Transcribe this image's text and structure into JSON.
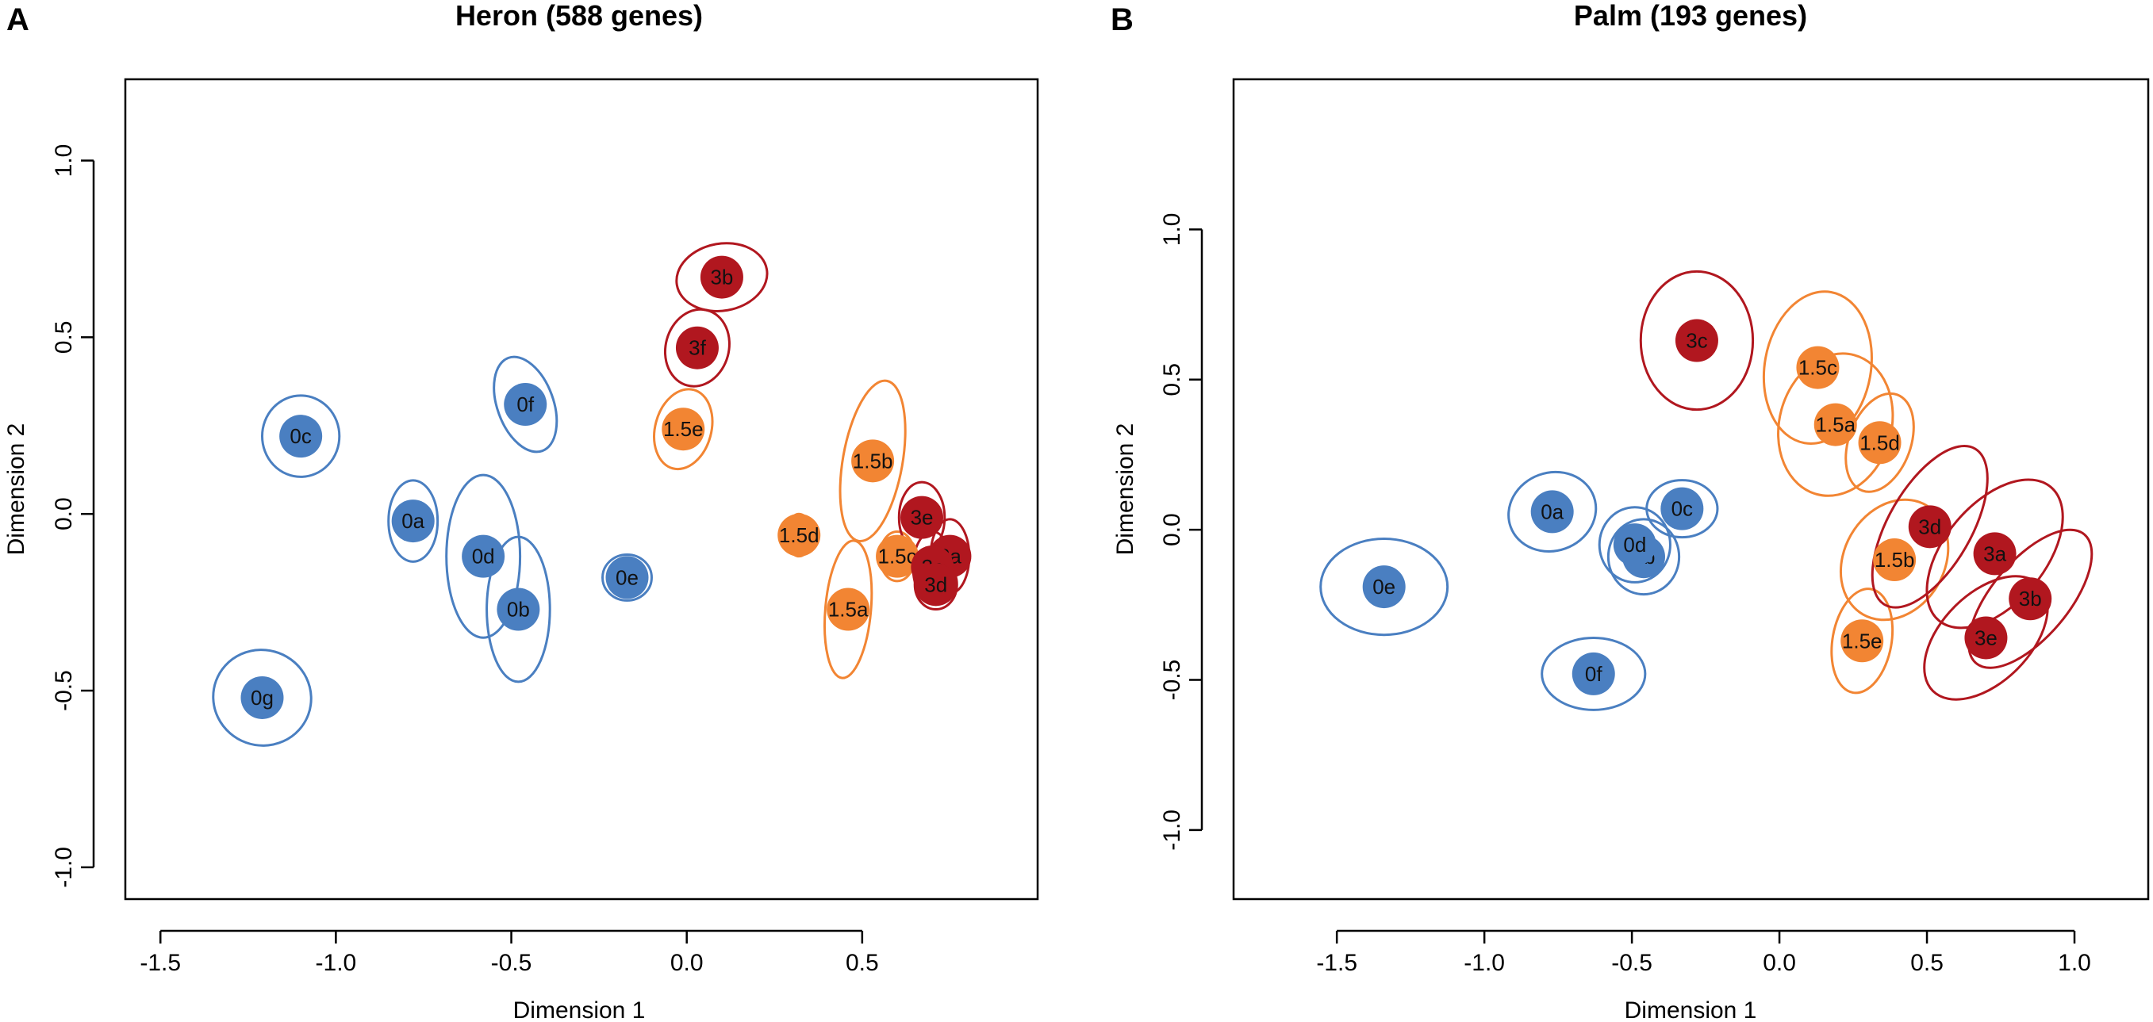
{
  "colors": {
    "day0": "#4a7fc1",
    "day1_5": "#f28533",
    "day3": "#b1171f"
  },
  "chart_data": [
    {
      "type": "scatter",
      "panel_label": "A",
      "title": "Heron (588 genes)",
      "xlabel": "Dimension 1",
      "ylabel": "Dimension 2",
      "xlim": [
        -1.6,
        1.0
      ],
      "ylim": [
        -1.09,
        1.23
      ],
      "xticks": [
        -1.5,
        -1.0,
        -0.5,
        0.0,
        0.5
      ],
      "xtick_labels": [
        "-1.5",
        "-1.0",
        "-0.5",
        "0.0",
        "0.5"
      ],
      "yticks": [
        -1.0,
        -0.5,
        0.0,
        0.5,
        1.0
      ],
      "ytick_labels": [
        "-1.0",
        "-0.5",
        "0.0",
        "0.5",
        "1.0"
      ],
      "points": [
        {
          "label": "0a",
          "group": "day0",
          "x": -0.78,
          "y": -0.02,
          "rx": 0.07,
          "ry": 0.115,
          "angle": 0
        },
        {
          "label": "0b",
          "group": "day0",
          "x": -0.48,
          "y": -0.27,
          "rx": 0.09,
          "ry": 0.205,
          "angle": 0
        },
        {
          "label": "0c",
          "group": "day0",
          "x": -1.1,
          "y": 0.22,
          "rx": 0.11,
          "ry": 0.115,
          "angle": 0
        },
        {
          "label": "0d",
          "group": "day0",
          "x": -0.58,
          "y": -0.12,
          "rx": 0.105,
          "ry": 0.23,
          "angle": 0
        },
        {
          "label": "0e",
          "group": "day0",
          "x": -0.17,
          "y": -0.18,
          "rx": 0.07,
          "ry": 0.065,
          "angle": 0
        },
        {
          "label": "0f",
          "group": "day0",
          "x": -0.46,
          "y": 0.31,
          "rx": 0.08,
          "ry": 0.14,
          "angle": -20
        },
        {
          "label": "0g",
          "group": "day0",
          "x": -1.21,
          "y": -0.52,
          "rx": 0.14,
          "ry": 0.135,
          "angle": 20
        },
        {
          "label": "1.5a",
          "group": "day1_5",
          "x": 0.46,
          "y": -0.27,
          "rx": 0.065,
          "ry": 0.195,
          "angle": 5
        },
        {
          "label": "1.5b",
          "group": "day1_5",
          "x": 0.53,
          "y": 0.15,
          "rx": 0.085,
          "ry": 0.23,
          "angle": 10
        },
        {
          "label": "1.5c",
          "group": "day1_5",
          "x": 0.6,
          "y": -0.12,
          "rx": 0.05,
          "ry": 0.07,
          "angle": 0
        },
        {
          "label": "1.5d",
          "group": "day1_5",
          "x": 0.32,
          "y": -0.06,
          "rx": 0.035,
          "ry": 0.06,
          "angle": 0
        },
        {
          "label": "1.5e",
          "group": "day1_5",
          "x": -0.01,
          "y": 0.24,
          "rx": 0.08,
          "ry": 0.115,
          "angle": 15
        },
        {
          "label": "3a",
          "group": "day3",
          "x": 0.75,
          "y": -0.12,
          "rx": 0.055,
          "ry": 0.105,
          "angle": 0
        },
        {
          "label": "3b",
          "group": "day3",
          "x": 0.1,
          "y": 0.67,
          "rx": 0.13,
          "ry": 0.095,
          "angle": -10
        },
        {
          "label": "3c",
          "group": "day3",
          "x": 0.7,
          "y": -0.15,
          "rx": 0.055,
          "ry": 0.1,
          "angle": 0
        },
        {
          "label": "3d",
          "group": "day3",
          "x": 0.71,
          "y": -0.2,
          "rx": 0.06,
          "ry": 0.07,
          "angle": 0
        },
        {
          "label": "3e",
          "group": "day3",
          "x": 0.67,
          "y": -0.01,
          "rx": 0.065,
          "ry": 0.1,
          "angle": 0
        },
        {
          "label": "3f",
          "group": "day3",
          "x": 0.03,
          "y": 0.47,
          "rx": 0.09,
          "ry": 0.11,
          "angle": 15
        }
      ]
    },
    {
      "type": "scatter",
      "panel_label": "B",
      "title": "Palm (193 genes)",
      "xlabel": "Dimension 1",
      "ylabel": "Dimension 2",
      "xlim": [
        -1.85,
        1.25
      ],
      "ylim": [
        -1.23,
        1.5
      ],
      "xticks": [
        -1.5,
        -1.0,
        -0.5,
        0.0,
        0.5,
        1.0
      ],
      "xtick_labels": [
        "-1.5",
        "-1.0",
        "-0.5",
        "0.0",
        "0.5",
        "1.0"
      ],
      "yticks": [
        -1.0,
        -0.5,
        0.0,
        0.5,
        1.0
      ],
      "ytick_labels": [
        "-1.0",
        "-0.5",
        "0.0",
        "0.5",
        "1.0"
      ],
      "points": [
        {
          "label": "0a",
          "group": "day0",
          "x": -0.77,
          "y": 0.06,
          "rx": 0.15,
          "ry": 0.13,
          "angle": -20
        },
        {
          "label": "0b",
          "group": "day0",
          "x": -0.46,
          "y": -0.09,
          "rx": 0.12,
          "ry": 0.125,
          "angle": 0
        },
        {
          "label": "0c",
          "group": "day0",
          "x": -0.33,
          "y": 0.07,
          "rx": 0.12,
          "ry": 0.095,
          "angle": 0
        },
        {
          "label": "0d",
          "group": "day0",
          "x": -0.49,
          "y": -0.05,
          "rx": 0.12,
          "ry": 0.125,
          "angle": 0
        },
        {
          "label": "0e",
          "group": "day0",
          "x": -1.34,
          "y": -0.19,
          "rx": 0.215,
          "ry": 0.16,
          "angle": 0
        },
        {
          "label": "0f",
          "group": "day0",
          "x": -0.63,
          "y": -0.48,
          "rx": 0.175,
          "ry": 0.12,
          "angle": 0
        },
        {
          "label": "1.5a",
          "group": "day1_5",
          "x": 0.19,
          "y": 0.35,
          "rx": 0.19,
          "ry": 0.24,
          "angle": 15
        },
        {
          "label": "1.5b",
          "group": "day1_5",
          "x": 0.39,
          "y": -0.1,
          "rx": 0.17,
          "ry": 0.21,
          "angle": 30
        },
        {
          "label": "1.5c",
          "group": "day1_5",
          "x": 0.13,
          "y": 0.54,
          "rx": 0.18,
          "ry": 0.255,
          "angle": 10
        },
        {
          "label": "1.5d",
          "group": "day1_5",
          "x": 0.34,
          "y": 0.29,
          "rx": 0.105,
          "ry": 0.17,
          "angle": 20
        },
        {
          "label": "1.5e",
          "group": "day1_5",
          "x": 0.28,
          "y": -0.37,
          "rx": 0.1,
          "ry": 0.175,
          "angle": 10
        },
        {
          "label": "3a",
          "group": "day3",
          "x": 0.73,
          "y": -0.08,
          "rx": 0.17,
          "ry": 0.29,
          "angle": 40
        },
        {
          "label": "3b",
          "group": "day3",
          "x": 0.85,
          "y": -0.23,
          "rx": 0.13,
          "ry": 0.28,
          "angle": 40
        },
        {
          "label": "3c",
          "group": "day3",
          "x": -0.28,
          "y": 0.63,
          "rx": 0.19,
          "ry": 0.23,
          "angle": 0
        },
        {
          "label": "3d",
          "group": "day3",
          "x": 0.51,
          "y": 0.01,
          "rx": 0.14,
          "ry": 0.3,
          "angle": 30
        },
        {
          "label": "3e",
          "group": "day3",
          "x": 0.7,
          "y": -0.36,
          "rx": 0.15,
          "ry": 0.25,
          "angle": 45
        }
      ]
    }
  ]
}
